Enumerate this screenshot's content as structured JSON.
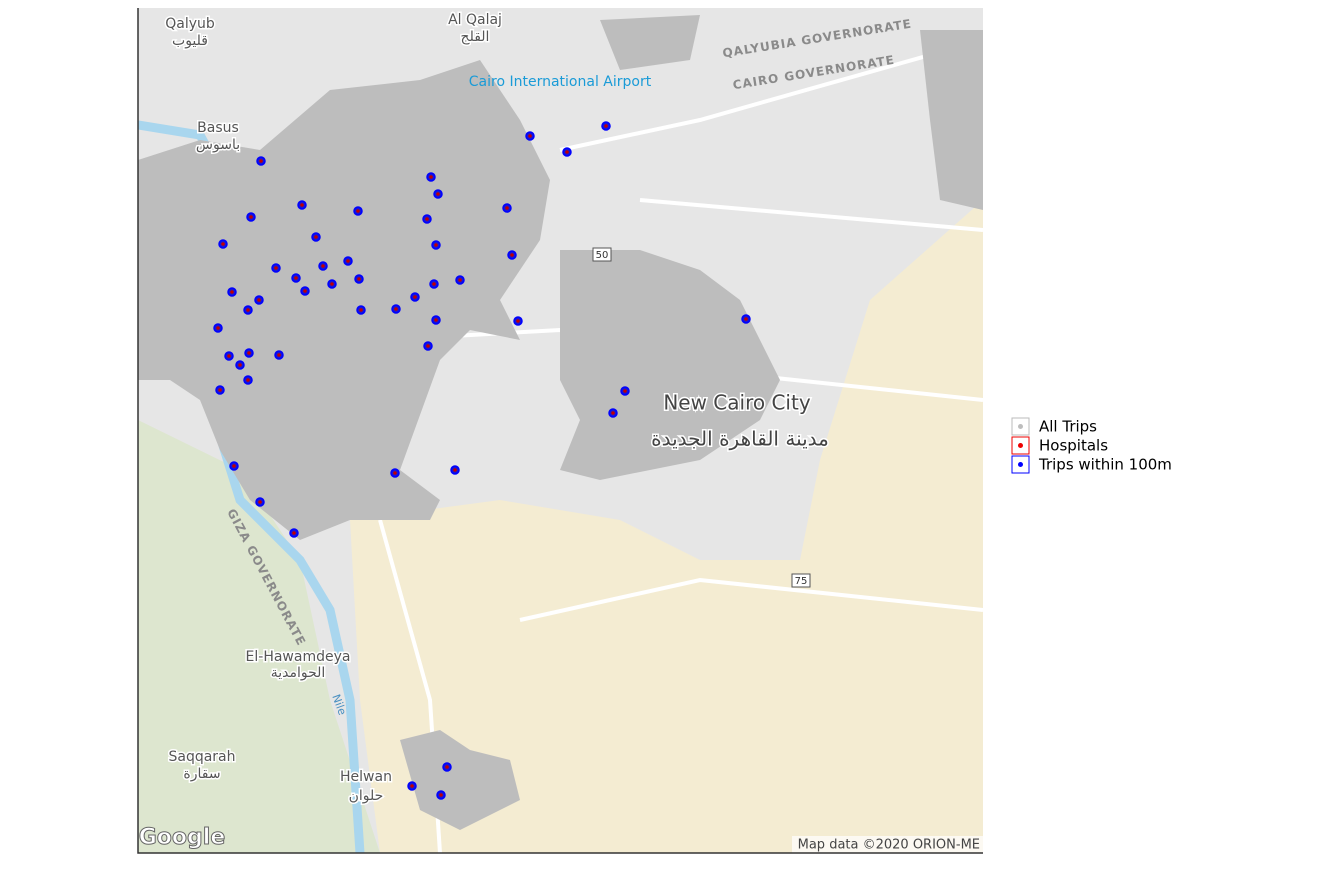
{
  "map": {
    "labels": [
      "Qalyub",
      "قليوب",
      "Al Qalaj",
      "القلج",
      "QALYUBIA GOVERNORATE",
      "CAIRO GOVERNORATE",
      "Cairo International Airport",
      "Basus",
      "باسوس",
      "New Cairo City",
      "مدينة القاهرة الجديدة",
      "El-Hawamdeya",
      "الحوامدية",
      "Saqqarah",
      "سقارة",
      "Helwan",
      "حلوان",
      "GIZA GOVERNORATE",
      "Nile",
      "50",
      "75"
    ],
    "logo": "Google",
    "attribution": "Map data ©2020 ORION-ME"
  },
  "legend": {
    "items": [
      "All Trips",
      "Hospitals",
      "Trips within 100m"
    ]
  }
}
